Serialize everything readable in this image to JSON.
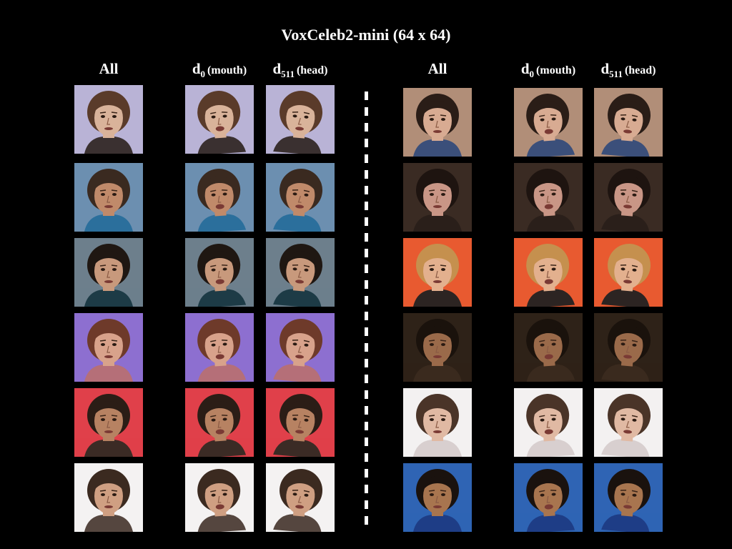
{
  "title": "VoxCeleb2-mini (64 x 64)",
  "headers": [
    {
      "main": "All",
      "sub": "",
      "paren": ""
    },
    {
      "main": "d",
      "sub": "0",
      "paren": "(mouth)"
    },
    {
      "main": "d",
      "sub": "511",
      "paren": "(head)"
    },
    {
      "main": "All",
      "sub": "",
      "paren": ""
    },
    {
      "main": "d",
      "sub": "0",
      "paren": "(mouth)"
    },
    {
      "main": "d",
      "sub": "511",
      "paren": "(head)"
    }
  ],
  "left_rows": [
    {
      "bg": "#b9b3d6",
      "skin": "#d9b39a",
      "hair": "#5a3b2a",
      "cloth": "#3a3030"
    },
    {
      "bg": "#6c8fb0",
      "skin": "#c08a6a",
      "hair": "#3a2a20",
      "cloth": "#2b6f9c"
    },
    {
      "bg": "#6d7f8c",
      "skin": "#c8997c",
      "hair": "#1f1712",
      "cloth": "#1d3b46"
    },
    {
      "bg": "#8d6fd0",
      "skin": "#d8a28b",
      "hair": "#6e3a2a",
      "cloth": "#b56f78"
    },
    {
      "bg": "#e0404a",
      "skin": "#b78262",
      "hair": "#2b1d16",
      "cloth": "#3b2b25"
    },
    {
      "bg": "#f4f2f2",
      "skin": "#cf9f82",
      "hair": "#3b2a20",
      "cloth": "#55463f"
    }
  ],
  "right_rows": [
    {
      "bg": "#b18e78",
      "skin": "#d8ab92",
      "hair": "#2a1d17",
      "cloth": "#3b4f7a"
    },
    {
      "bg": "#3a2b23",
      "skin": "#c99686",
      "hair": "#1e1410",
      "cloth": "#2a1f1a"
    },
    {
      "bg": "#e85a30",
      "skin": "#e3b08e",
      "hair": "#c5904e",
      "cloth": "#2c2422"
    },
    {
      "bg": "#2e2218",
      "skin": "#9a6a4a",
      "hair": "#1a120c",
      "cloth": "#3a2a1e"
    },
    {
      "bg": "#f3f1f1",
      "skin": "#e0b9a3",
      "hair": "#4a3428",
      "cloth": "#d8cfcf"
    },
    {
      "bg": "#2f64b4",
      "skin": "#a8754f",
      "hair": "#1a120e",
      "cloth": "#1e3d86"
    }
  ]
}
